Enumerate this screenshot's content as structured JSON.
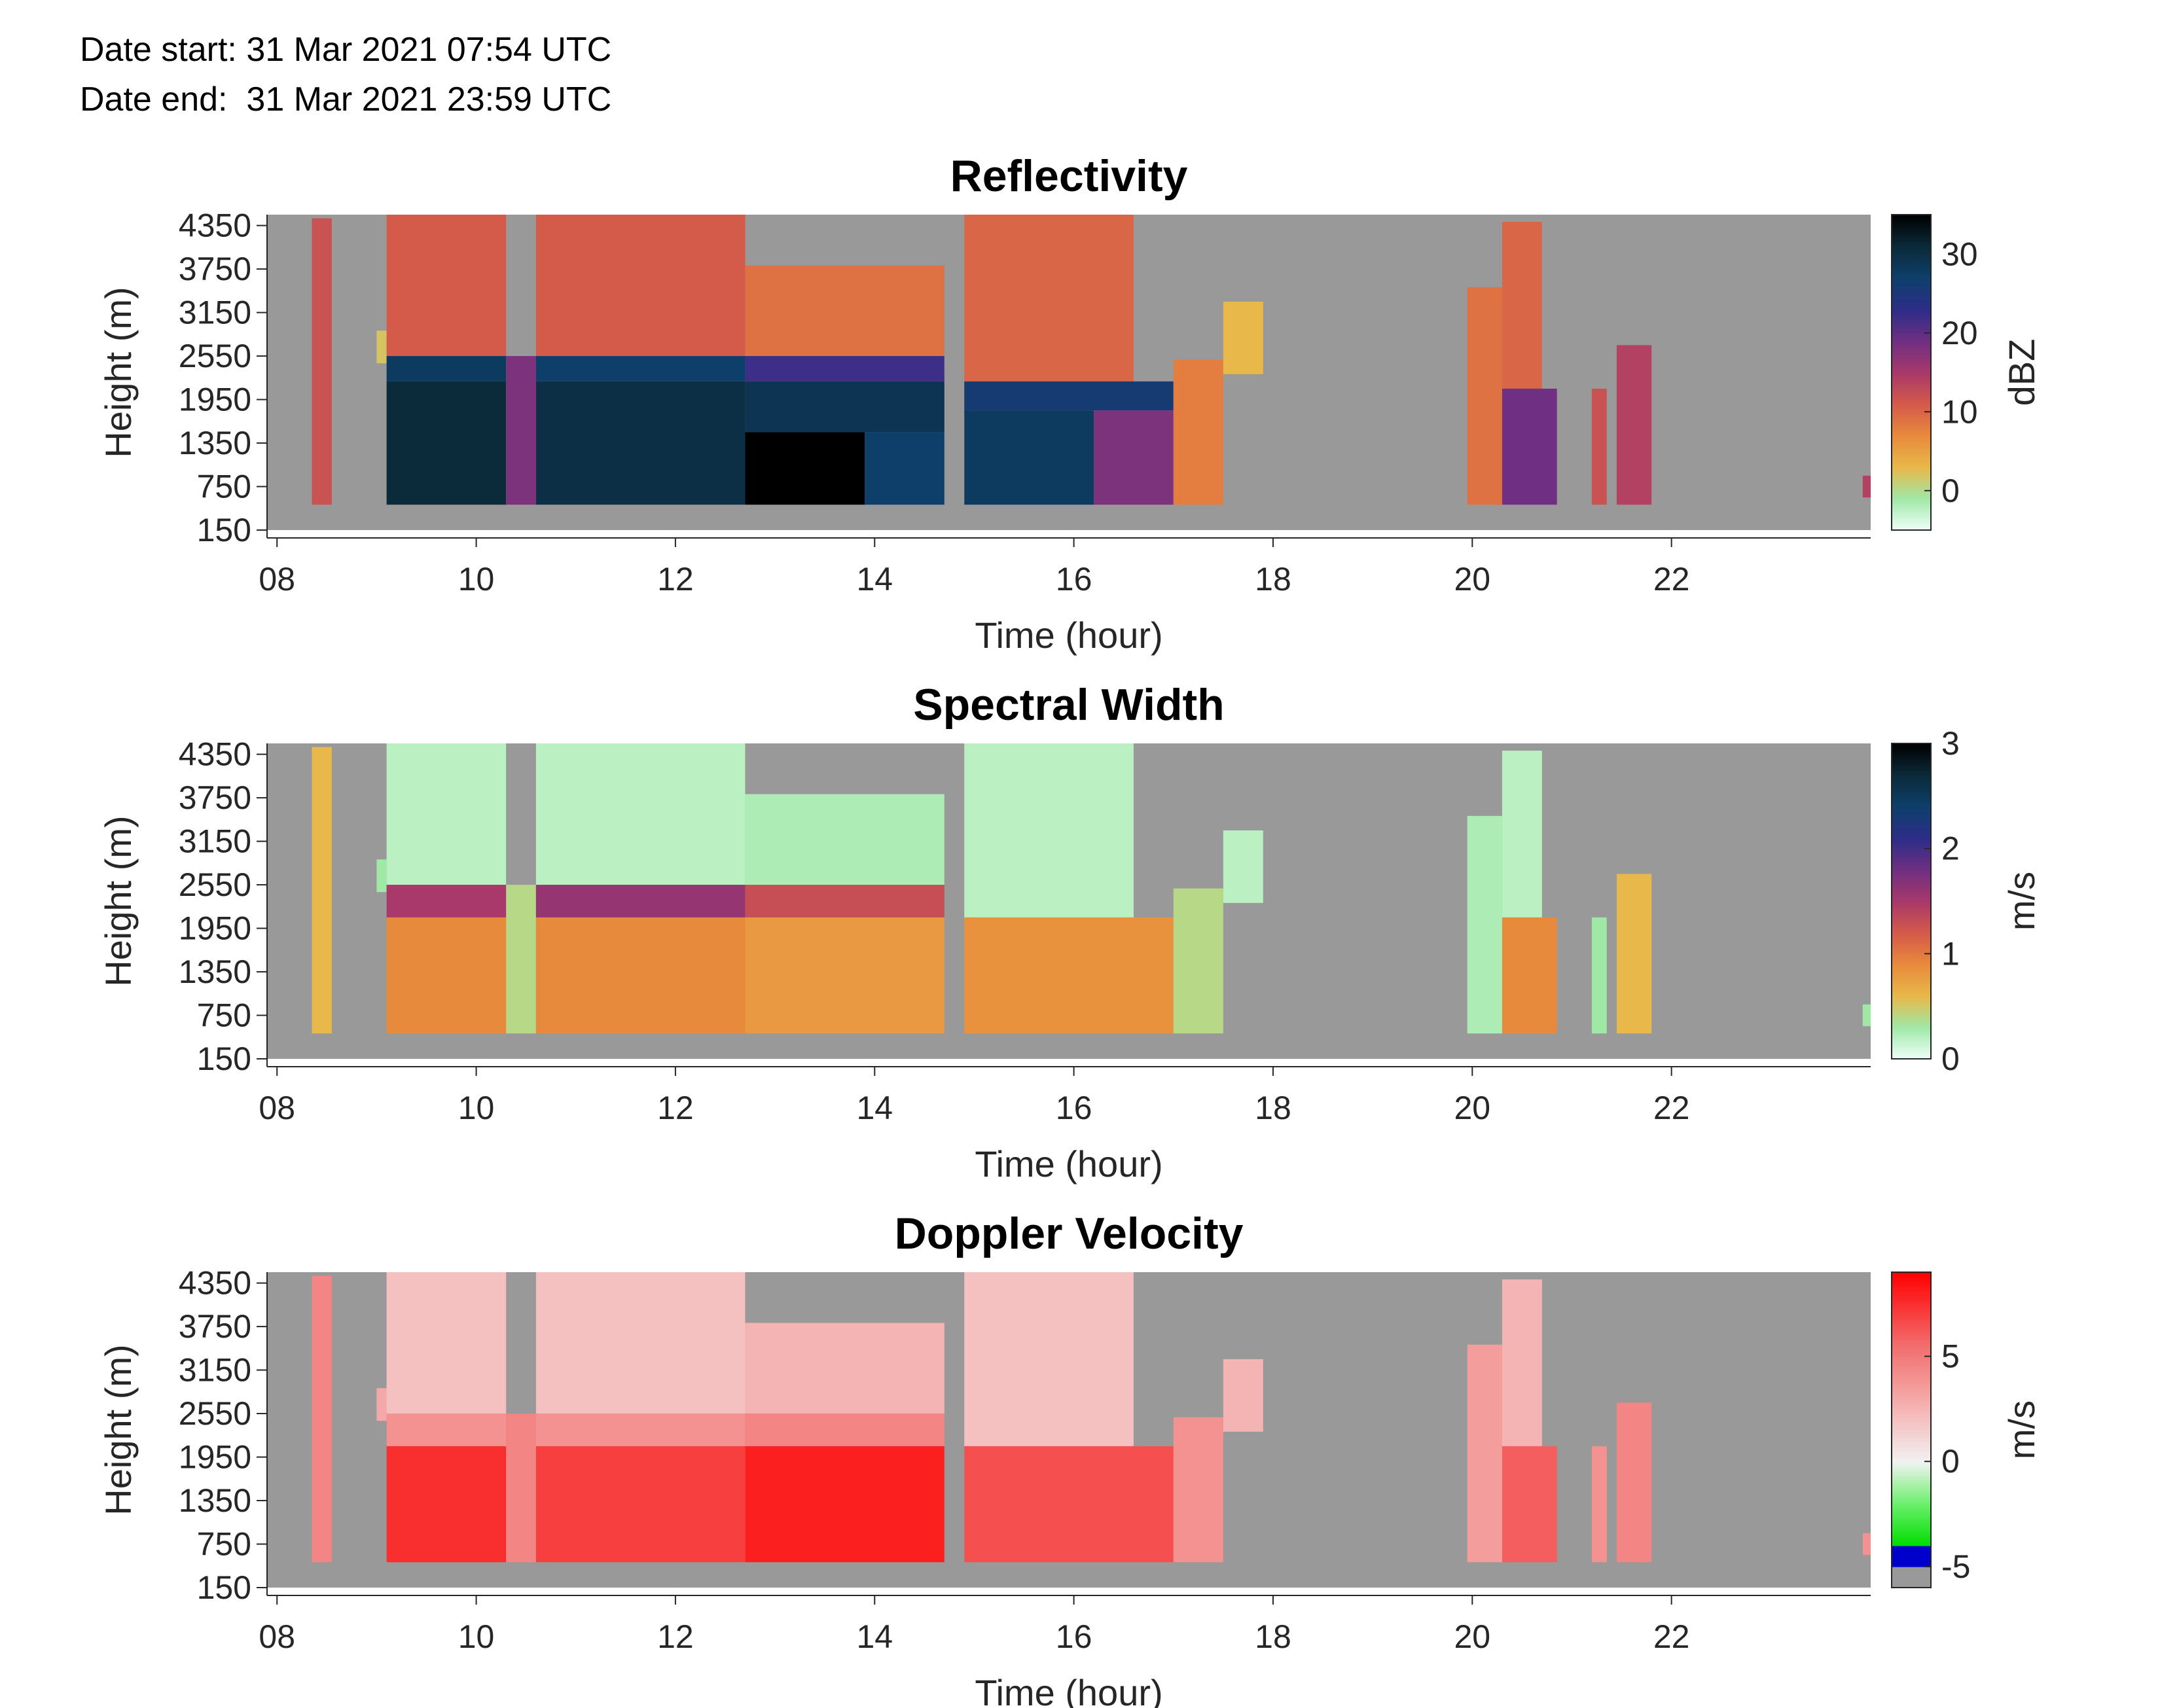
{
  "header": {
    "date_start_label": "Date start:",
    "date_start_value": "31 Mar 2021 07:54 UTC",
    "date_end_label": "Date end:",
    "date_end_value": "31 Mar 2021 23:59 UTC"
  },
  "chart_data": [
    {
      "type": "heatmap",
      "title": "Reflectivity",
      "xlabel": "Time (hour)",
      "ylabel": "Height (m)",
      "colorbar_label": "dBZ",
      "xlim": [
        7.9,
        24.0
      ],
      "ylim": [
        150,
        4500
      ],
      "xticks": [
        8,
        10,
        12,
        14,
        16,
        18,
        20,
        22
      ],
      "xtick_labels": [
        "08",
        "10",
        "12",
        "14",
        "16",
        "18",
        "20",
        "22"
      ],
      "yticks": [
        150,
        750,
        1350,
        1950,
        2550,
        3150,
        3750,
        4350
      ],
      "ytick_labels": [
        "150",
        "750",
        "1350",
        "1950",
        "2550",
        "3150",
        "3750",
        "4350"
      ],
      "clim": [
        -5,
        35
      ],
      "cticks": [
        0,
        10,
        20,
        30
      ],
      "ctick_labels": [
        "0",
        "10",
        "20",
        "30"
      ],
      "colormap": [
        "#f0fffa",
        "#9fe8a6",
        "#e8b84a",
        "#e88a3c",
        "#d45a4a",
        "#a8396a",
        "#6f2f82",
        "#2c2d88",
        "#0e3f6b",
        "#0b2a3a",
        "#000000"
      ],
      "background_color": "#999999",
      "echo_cells": [
        {
          "t0": 8.35,
          "t1": 8.55,
          "h0": 500,
          "h1": 4450,
          "v": 12
        },
        {
          "t0": 9.0,
          "t1": 9.1,
          "h0": 2450,
          "h1": 2900,
          "v": 2
        },
        {
          "t0": 9.1,
          "t1": 10.3,
          "h0": 2550,
          "h1": 4500,
          "v": 11
        },
        {
          "t0": 9.1,
          "t1": 10.3,
          "h0": 2200,
          "h1": 2550,
          "v": 28
        },
        {
          "t0": 9.1,
          "t1": 10.3,
          "h0": 500,
          "h1": 2200,
          "v": 31
        },
        {
          "t0": 10.3,
          "t1": 10.6,
          "h0": 500,
          "h1": 2550,
          "v": 18
        },
        {
          "t0": 10.6,
          "t1": 12.7,
          "h0": 2550,
          "h1": 4500,
          "v": 11
        },
        {
          "t0": 10.6,
          "t1": 12.7,
          "h0": 2200,
          "h1": 2550,
          "v": 27
        },
        {
          "t0": 10.6,
          "t1": 12.7,
          "h0": 500,
          "h1": 2200,
          "v": 30
        },
        {
          "t0": 12.7,
          "t1": 14.7,
          "h0": 2550,
          "h1": 3800,
          "v": 9
        },
        {
          "t0": 12.7,
          "t1": 14.7,
          "h0": 2200,
          "h1": 2550,
          "v": 22
        },
        {
          "t0": 12.7,
          "t1": 14.7,
          "h0": 1500,
          "h1": 2200,
          "v": 29
        },
        {
          "t0": 12.7,
          "t1": 13.9,
          "h0": 500,
          "h1": 1500,
          "v": 35
        },
        {
          "t0": 13.9,
          "t1": 14.7,
          "h0": 500,
          "h1": 1500,
          "v": 27
        },
        {
          "t0": 14.9,
          "t1": 16.6,
          "h0": 2200,
          "h1": 4500,
          "v": 10
        },
        {
          "t0": 14.9,
          "t1": 17.0,
          "h0": 1800,
          "h1": 2200,
          "v": 26
        },
        {
          "t0": 14.9,
          "t1": 16.2,
          "h0": 500,
          "h1": 1800,
          "v": 28
        },
        {
          "t0": 16.2,
          "t1": 17.0,
          "h0": 500,
          "h1": 1800,
          "v": 18
        },
        {
          "t0": 17.0,
          "t1": 17.5,
          "h0": 500,
          "h1": 2500,
          "v": 8
        },
        {
          "t0": 17.5,
          "t1": 17.9,
          "h0": 2300,
          "h1": 3300,
          "v": 3
        },
        {
          "t0": 19.95,
          "t1": 20.3,
          "h0": 500,
          "h1": 3500,
          "v": 9
        },
        {
          "t0": 20.3,
          "t1": 20.7,
          "h0": 2100,
          "h1": 4400,
          "v": 10
        },
        {
          "t0": 20.3,
          "t1": 20.85,
          "h0": 500,
          "h1": 2100,
          "v": 19
        },
        {
          "t0": 21.2,
          "t1": 21.35,
          "h0": 500,
          "h1": 2100,
          "v": 12
        },
        {
          "t0": 21.45,
          "t1": 21.8,
          "h0": 500,
          "h1": 2700,
          "v": 14
        },
        {
          "t0": 23.92,
          "t1": 24.0,
          "h0": 600,
          "h1": 900,
          "v": 14
        }
      ]
    },
    {
      "type": "heatmap",
      "title": "Spectral Width",
      "xlabel": "Time (hour)",
      "ylabel": "Height (m)",
      "colorbar_label": "m/s",
      "xlim": [
        7.9,
        24.0
      ],
      "ylim": [
        150,
        4500
      ],
      "xticks": [
        8,
        10,
        12,
        14,
        16,
        18,
        20,
        22
      ],
      "xtick_labels": [
        "08",
        "10",
        "12",
        "14",
        "16",
        "18",
        "20",
        "22"
      ],
      "yticks": [
        150,
        750,
        1350,
        1950,
        2550,
        3150,
        3750,
        4350
      ],
      "ytick_labels": [
        "150",
        "750",
        "1350",
        "1950",
        "2550",
        "3150",
        "3750",
        "4350"
      ],
      "clim": [
        0,
        3
      ],
      "cticks": [
        0,
        1,
        2,
        3
      ],
      "ctick_labels": [
        "0",
        "1",
        "2",
        "3"
      ],
      "colormap": [
        "#f0fffa",
        "#9fe8a6",
        "#e8b84a",
        "#e88a3c",
        "#d45a4a",
        "#a8396a",
        "#6f2f82",
        "#2c2d88",
        "#0e3f6b",
        "#0b2a3a",
        "#000000"
      ],
      "background_color": "#999999",
      "echo_cells": [
        {
          "t0": 8.35,
          "t1": 8.55,
          "h0": 500,
          "h1": 4450,
          "v": 0.6
        },
        {
          "t0": 9.0,
          "t1": 9.1,
          "h0": 2450,
          "h1": 2900,
          "v": 0.3
        },
        {
          "t0": 9.1,
          "t1": 10.3,
          "h0": 2550,
          "h1": 4500,
          "v": 0.2
        },
        {
          "t0": 9.1,
          "t1": 10.3,
          "h0": 2100,
          "h1": 2550,
          "v": 1.5
        },
        {
          "t0": 9.1,
          "t1": 10.3,
          "h0": 500,
          "h1": 2100,
          "v": 0.9
        },
        {
          "t0": 10.3,
          "t1": 10.6,
          "h0": 500,
          "h1": 2550,
          "v": 0.4
        },
        {
          "t0": 10.6,
          "t1": 12.7,
          "h0": 2550,
          "h1": 4500,
          "v": 0.2
        },
        {
          "t0": 10.6,
          "t1": 12.7,
          "h0": 2100,
          "h1": 2550,
          "v": 1.6
        },
        {
          "t0": 10.6,
          "t1": 12.7,
          "h0": 500,
          "h1": 2100,
          "v": 0.9
        },
        {
          "t0": 12.7,
          "t1": 14.7,
          "h0": 2550,
          "h1": 3800,
          "v": 0.25
        },
        {
          "t0": 12.7,
          "t1": 14.7,
          "h0": 2100,
          "h1": 2550,
          "v": 1.3
        },
        {
          "t0": 12.7,
          "t1": 14.7,
          "h0": 500,
          "h1": 2100,
          "v": 0.8
        },
        {
          "t0": 14.9,
          "t1": 16.6,
          "h0": 2100,
          "h1": 4500,
          "v": 0.2
        },
        {
          "t0": 14.9,
          "t1": 17.0,
          "h0": 500,
          "h1": 2100,
          "v": 0.85
        },
        {
          "t0": 17.0,
          "t1": 17.5,
          "h0": 500,
          "h1": 2500,
          "v": 0.4
        },
        {
          "t0": 17.5,
          "t1": 17.9,
          "h0": 2300,
          "h1": 3300,
          "v": 0.2
        },
        {
          "t0": 19.95,
          "t1": 20.3,
          "h0": 500,
          "h1": 3500,
          "v": 0.25
        },
        {
          "t0": 20.3,
          "t1": 20.7,
          "h0": 2100,
          "h1": 4400,
          "v": 0.2
        },
        {
          "t0": 20.3,
          "t1": 20.85,
          "h0": 500,
          "h1": 2100,
          "v": 0.9
        },
        {
          "t0": 21.2,
          "t1": 21.35,
          "h0": 500,
          "h1": 2100,
          "v": 0.3
        },
        {
          "t0": 21.45,
          "t1": 21.8,
          "h0": 500,
          "h1": 2700,
          "v": 0.6
        },
        {
          "t0": 23.92,
          "t1": 24.0,
          "h0": 600,
          "h1": 900,
          "v": 0.3
        }
      ]
    },
    {
      "type": "heatmap",
      "title": "Doppler Velocity",
      "xlabel": "Time (hour)",
      "ylabel": "Height (m)",
      "colorbar_label": "m/s",
      "xlim": [
        7.9,
        24.0
      ],
      "ylim": [
        150,
        4500
      ],
      "xticks": [
        8,
        10,
        12,
        14,
        16,
        18,
        20,
        22
      ],
      "xtick_labels": [
        "08",
        "10",
        "12",
        "14",
        "16",
        "18",
        "20",
        "22"
      ],
      "yticks": [
        150,
        750,
        1350,
        1950,
        2550,
        3150,
        3750,
        4350
      ],
      "ytick_labels": [
        "150",
        "750",
        "1350",
        "1950",
        "2550",
        "3150",
        "3750",
        "4350"
      ],
      "clim": [
        -6,
        9
      ],
      "cticks": [
        -5,
        0,
        5
      ],
      "ctick_labels": [
        "-5",
        "0",
        "5"
      ],
      "colormap_stops": [
        {
          "v": -6.0,
          "c": "#999999"
        },
        {
          "v": -5.0,
          "c": "#999999"
        },
        {
          "v": -5.0,
          "c": "#0000cc"
        },
        {
          "v": -4.0,
          "c": "#0000cc"
        },
        {
          "v": -4.0,
          "c": "#00dd00"
        },
        {
          "v": -2.0,
          "c": "#6cf06c"
        },
        {
          "v": 0.0,
          "c": "#f2f2f2"
        },
        {
          "v": 2.5,
          "c": "#f5b4b4"
        },
        {
          "v": 5.5,
          "c": "#f26e6e"
        },
        {
          "v": 9.0,
          "c": "#ff0000"
        }
      ],
      "background_color": "#999999",
      "echo_cells": [
        {
          "t0": 8.35,
          "t1": 8.55,
          "h0": 500,
          "h1": 4450,
          "v": 4.5
        },
        {
          "t0": 9.0,
          "t1": 9.1,
          "h0": 2450,
          "h1": 2900,
          "v": 3.0
        },
        {
          "t0": 9.1,
          "t1": 10.3,
          "h0": 2550,
          "h1": 4500,
          "v": 2.0
        },
        {
          "t0": 9.1,
          "t1": 10.3,
          "h0": 2100,
          "h1": 2550,
          "v": 4.0
        },
        {
          "t0": 9.1,
          "t1": 10.3,
          "h0": 500,
          "h1": 2100,
          "v": 7.5
        },
        {
          "t0": 10.3,
          "t1": 10.6,
          "h0": 500,
          "h1": 2550,
          "v": 4.5
        },
        {
          "t0": 10.6,
          "t1": 12.7,
          "h0": 2550,
          "h1": 4500,
          "v": 2.0
        },
        {
          "t0": 10.6,
          "t1": 12.7,
          "h0": 2100,
          "h1": 2550,
          "v": 4.0
        },
        {
          "t0": 10.6,
          "t1": 12.7,
          "h0": 500,
          "h1": 2100,
          "v": 7.0
        },
        {
          "t0": 12.7,
          "t1": 14.7,
          "h0": 2550,
          "h1": 3800,
          "v": 2.5
        },
        {
          "t0": 12.7,
          "t1": 14.7,
          "h0": 2100,
          "h1": 2550,
          "v": 4.5
        },
        {
          "t0": 12.7,
          "t1": 14.7,
          "h0": 500,
          "h1": 2100,
          "v": 8.0
        },
        {
          "t0": 14.9,
          "t1": 16.6,
          "h0": 2100,
          "h1": 4500,
          "v": 2.0
        },
        {
          "t0": 14.9,
          "t1": 17.0,
          "h0": 500,
          "h1": 2100,
          "v": 6.5
        },
        {
          "t0": 17.0,
          "t1": 17.5,
          "h0": 500,
          "h1": 2500,
          "v": 4.0
        },
        {
          "t0": 17.5,
          "t1": 17.9,
          "h0": 2300,
          "h1": 3300,
          "v": 2.5
        },
        {
          "t0": 19.95,
          "t1": 20.3,
          "h0": 500,
          "h1": 3500,
          "v": 3.5
        },
        {
          "t0": 20.3,
          "t1": 20.7,
          "h0": 2100,
          "h1": 4400,
          "v": 2.5
        },
        {
          "t0": 20.3,
          "t1": 20.85,
          "h0": 500,
          "h1": 2100,
          "v": 6.0
        },
        {
          "t0": 21.2,
          "t1": 21.35,
          "h0": 500,
          "h1": 2100,
          "v": 4.0
        },
        {
          "t0": 21.45,
          "t1": 21.8,
          "h0": 500,
          "h1": 2700,
          "v": 4.5
        },
        {
          "t0": 23.92,
          "t1": 24.0,
          "h0": 600,
          "h1": 900,
          "v": 4.0
        }
      ]
    }
  ]
}
